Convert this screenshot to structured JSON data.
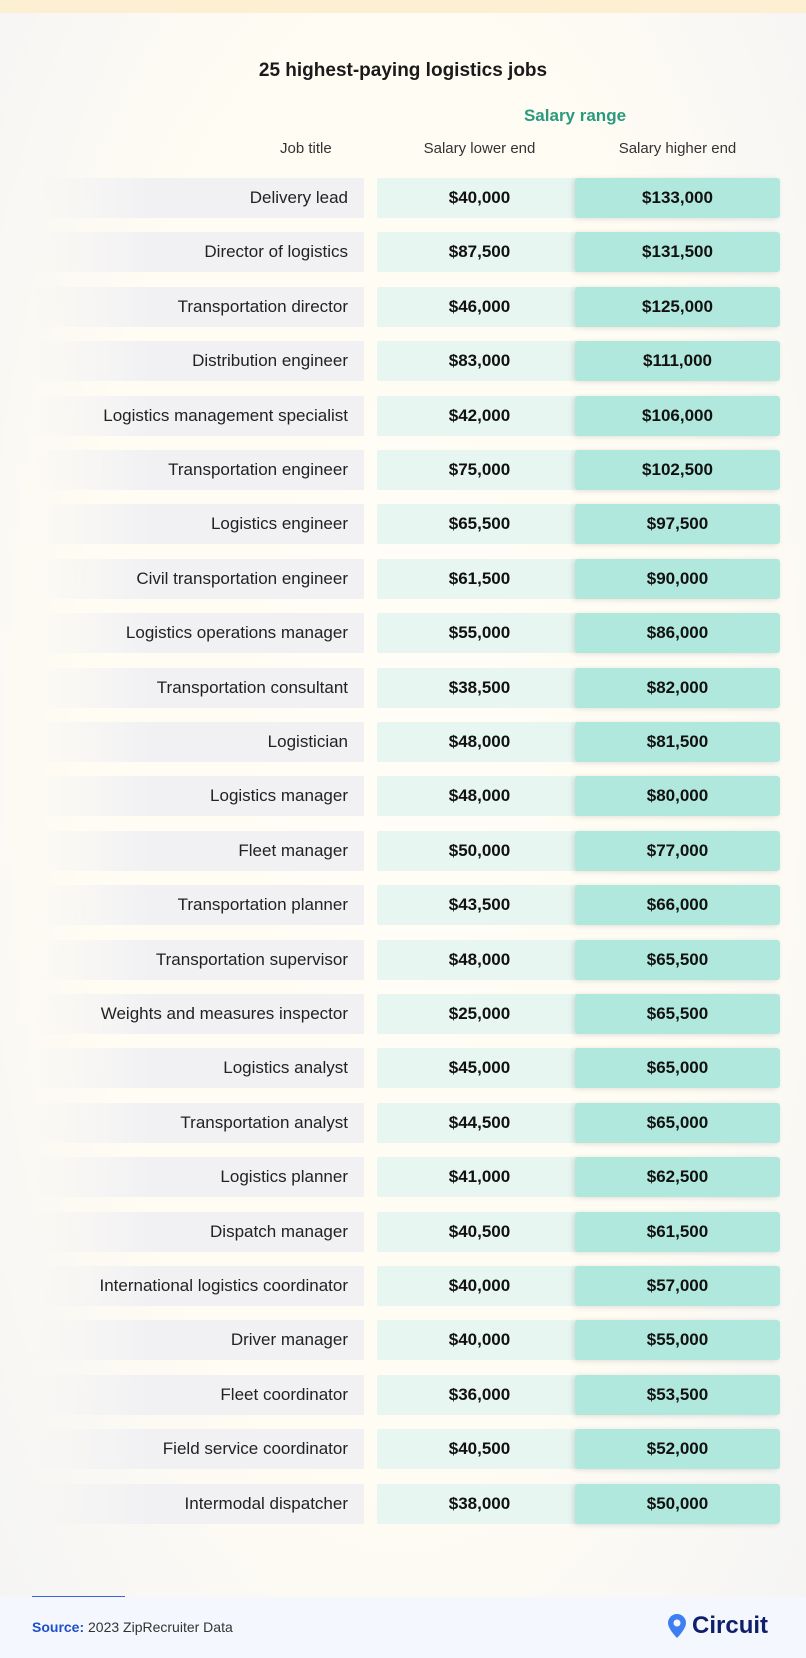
{
  "chart_data": {
    "type": "table",
    "title": "25 highest-paying logistics jobs",
    "group_header": "Salary range",
    "columns": [
      "Job title",
      "Salary lower end",
      "Salary higher end"
    ],
    "rows": [
      [
        "Delivery lead",
        "$40,000",
        "$133,000"
      ],
      [
        "Director of logistics",
        "$87,500",
        "$131,500"
      ],
      [
        "Transportation director",
        "$46,000",
        "$125,000"
      ],
      [
        "Distribution engineer",
        "$83,000",
        "$111,000"
      ],
      [
        "Logistics management specialist",
        "$42,000",
        "$106,000"
      ],
      [
        "Transportation engineer",
        "$75,000",
        "$102,500"
      ],
      [
        "Logistics engineer",
        "$65,500",
        "$97,500"
      ],
      [
        "Civil transportation engineer",
        "$61,500",
        "$90,000"
      ],
      [
        "Logistics operations manager",
        "$55,000",
        "$86,000"
      ],
      [
        "Transportation consultant",
        "$38,500",
        "$82,000"
      ],
      [
        "Logistician",
        "$48,000",
        "$81,500"
      ],
      [
        "Logistics manager",
        "$48,000",
        "$80,000"
      ],
      [
        "Fleet manager",
        "$50,000",
        "$77,000"
      ],
      [
        "Transportation planner",
        "$43,500",
        "$66,000"
      ],
      [
        "Transportation supervisor",
        "$48,000",
        "$65,500"
      ],
      [
        "Weights and measures inspector",
        "$25,000",
        "$65,500"
      ],
      [
        "Logistics analyst",
        "$45,000",
        "$65,000"
      ],
      [
        "Transportation analyst",
        "$44,500",
        "$65,000"
      ],
      [
        "Logistics planner",
        "$41,000",
        "$62,500"
      ],
      [
        "Dispatch manager",
        "$40,500",
        "$61,500"
      ],
      [
        "International logistics coordinator",
        "$40,000",
        "$57,000"
      ],
      [
        "Driver manager",
        "$40,000",
        "$55,000"
      ],
      [
        "Fleet coordinator",
        "$36,000",
        "$53,500"
      ],
      [
        "Field service coordinator",
        "$40,500",
        "$52,000"
      ],
      [
        "Intermodal dispatcher",
        "$38,000",
        "$50,000"
      ]
    ]
  },
  "footer": {
    "source_label": "Source:",
    "source_text": "2023 ZipRecruiter Data",
    "logo_text": "Circuit"
  },
  "colors": {
    "accent": "#2a9a7e",
    "lower_cell": "#e8f6f2",
    "higher_cell": "#b1e8dd",
    "logo": "#0f1f6b",
    "pin": "#3d7ff0"
  }
}
